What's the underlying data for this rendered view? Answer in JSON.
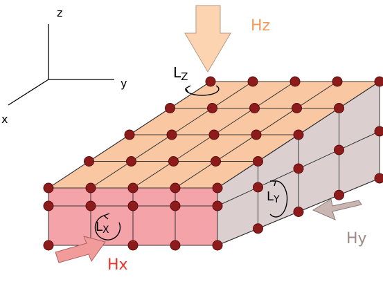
{
  "axes": {
    "z": "z",
    "y": "y",
    "x": "x"
  },
  "fields": {
    "hz": "Hz",
    "hx": "Hx",
    "hy": "Hy"
  },
  "moments": {
    "lz": {
      "main": "L",
      "sub": "Z"
    },
    "ly": {
      "main": "L",
      "sub": "Y"
    },
    "lx": {
      "main": "L",
      "sub": "X"
    }
  }
}
